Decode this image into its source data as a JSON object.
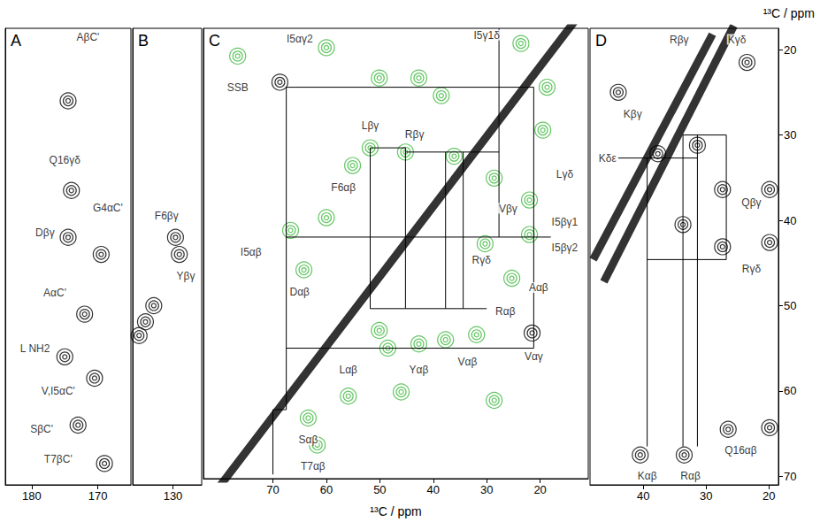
{
  "chart_data": [
    {
      "type": "scatter",
      "title": "A",
      "grid": false,
      "tick_labels": "x",
      "xlim": [
        184,
        165
      ],
      "ylim": [
        71,
        17.5
      ],
      "xticks": [
        180,
        170
      ],
      "series": [
        {
          "color": "#000000",
          "values": [
            [
              174.5,
              26
            ],
            [
              174,
              36.5
            ],
            [
              174.5,
              42
            ],
            [
              169.5,
              44
            ],
            [
              172,
              51
            ],
            [
              175,
              56
            ],
            [
              170.5,
              58.5
            ],
            [
              173,
              64
            ],
            [
              169,
              68.5
            ]
          ]
        }
      ],
      "annotations": [
        {
          "text": "AβC'",
          "x": 171.5,
          "y": 18.5
        },
        {
          "text": "Q16γδ",
          "x": 175,
          "y": 33
        },
        {
          "text": "Dβγ",
          "x": 178,
          "y": 41.5
        },
        {
          "text": "G4αC'",
          "x": 168.5,
          "y": 38.5
        },
        {
          "text": "AαC'",
          "x": 176.5,
          "y": 48.5
        },
        {
          "text": "L NH2",
          "x": 179.5,
          "y": 55
        },
        {
          "text": "V,I5αC'",
          "x": 176,
          "y": 60
        },
        {
          "text": "SβC'",
          "x": 178.5,
          "y": 64.5
        },
        {
          "text": "T7βC'",
          "x": 176,
          "y": 68
        }
      ]
    },
    {
      "type": "scatter",
      "title": "B",
      "grid": false,
      "tick_labels": "x",
      "xlim": [
        136.3,
        125.5
      ],
      "ylim": [
        71,
        17.5
      ],
      "xticks": [
        130
      ],
      "series": [
        {
          "color": "#000000",
          "values": [
            [
              129.6,
              42
            ],
            [
              129,
              44
            ],
            [
              133,
              50
            ],
            [
              134.3,
              51.9
            ],
            [
              135.3,
              53.5
            ]
          ]
        }
      ],
      "annotations": [
        {
          "text": "F6βγ",
          "x": 131,
          "y": 39.5
        },
        {
          "text": "Yβγ",
          "x": 128,
          "y": 46.5
        }
      ]
    },
    {
      "type": "scatter",
      "title": "C",
      "grid": false,
      "tick_labels": "x",
      "xlabel": "¹³C / ppm",
      "xlim": [
        83,
        11
      ],
      "ylim": [
        71,
        17.5
      ],
      "xticks": [
        70,
        60,
        50,
        40,
        30,
        20
      ],
      "series": [
        {
          "type": "line",
          "color": "#000000",
          "values": [
            [
              82,
              73.6
            ],
            [
              13,
              16.2
            ]
          ]
        },
        {
          "color": "#000000",
          "values": [
            [
              68.7,
              23.9
            ],
            [
              21.5,
              53.7
            ]
          ]
        },
        {
          "color": "#3cb83c",
          "values": [
            [
              76.6,
              20.8
            ],
            [
              23.6,
              19.3
            ],
            [
              60,
              19.8
            ],
            [
              50.1,
              23.4
            ],
            [
              42.7,
              23.4
            ],
            [
              38.5,
              25.5
            ],
            [
              51.8,
              31.7
            ],
            [
              45.2,
              32.2
            ],
            [
              36.1,
              32.7
            ],
            [
              28.6,
              35.3
            ],
            [
              22,
              37.9
            ],
            [
              19.5,
              29.6
            ],
            [
              18.7,
              24.5
            ],
            [
              66.7,
              41.5
            ],
            [
              60,
              40
            ],
            [
              55.1,
              33.8
            ],
            [
              64.2,
              46.2
            ],
            [
              30.3,
              43.1
            ],
            [
              22,
              42
            ],
            [
              25.3,
              47.2
            ],
            [
              50.1,
              53.4
            ],
            [
              48.5,
              55.5
            ],
            [
              42.7,
              55
            ],
            [
              37.7,
              54.5
            ],
            [
              31.9,
              53.9
            ],
            [
              55.9,
              61.2
            ],
            [
              46,
              60.7
            ],
            [
              28.6,
              61.7
            ],
            [
              63.4,
              63.8
            ],
            [
              61.7,
              67
            ]
          ]
        }
      ],
      "lines": [
        [
          [
            67.5,
            24.5
          ],
          [
            21.2,
            24.5
          ]
        ],
        [
          [
            67.5,
            24.5
          ],
          [
            67.5,
            62.8
          ]
        ],
        [
          [
            21.2,
            24.5
          ],
          [
            21.2,
            55.5
          ]
        ],
        [
          [
            67.5,
            55.5
          ],
          [
            21.2,
            55.5
          ]
        ],
        [
          [
            67.5,
            42.3
          ],
          [
            18,
            42.3
          ]
        ],
        [
          [
            27.7,
            17.5
          ],
          [
            27.7,
            42.3
          ]
        ],
        [
          [
            51.8,
            31.7
          ],
          [
            51.8,
            50.8
          ]
        ],
        [
          [
            45.2,
            31.7
          ],
          [
            45.2,
            50.8
          ]
        ],
        [
          [
            51.8,
            31.7
          ],
          [
            45.2,
            31.7
          ]
        ],
        [
          [
            51.8,
            50.8
          ],
          [
            45.2,
            50.8
          ]
        ],
        [
          [
            37.7,
            32.2
          ],
          [
            37.7,
            50.8
          ]
        ],
        [
          [
            34.4,
            32.2
          ],
          [
            34.4,
            50.8
          ]
        ],
        [
          [
            45.2,
            32.2
          ],
          [
            27.7,
            32.2
          ]
        ],
        [
          [
            45.2,
            50.8
          ],
          [
            30,
            50.8
          ]
        ],
        [
          [
            70,
            62.8
          ],
          [
            67.5,
            62.8
          ]
        ],
        [
          [
            70,
            62.8
          ],
          [
            70,
            70.5
          ]
        ]
      ],
      "annotations": [
        {
          "text": "I5αγ2",
          "x": 65,
          "y": 18.8
        },
        {
          "text": "SSB",
          "x": 76.6,
          "y": 24.5
        },
        {
          "text": "I5γ1δ",
          "x": 30,
          "y": 18.3
        },
        {
          "text": "Lβγ",
          "x": 51.8,
          "y": 29.1
        },
        {
          "text": "Rβγ",
          "x": 43.5,
          "y": 30.1
        },
        {
          "text": "F6αβ",
          "x": 56.8,
          "y": 36.4
        },
        {
          "text": "Lγδ",
          "x": 15.4,
          "y": 34.8
        },
        {
          "text": "Vβγ",
          "x": 26,
          "y": 38.9
        },
        {
          "text": "I5βγ1",
          "x": 15.4,
          "y": 40.5
        },
        {
          "text": "I5αβ",
          "x": 74.1,
          "y": 44.1
        },
        {
          "text": "I5βγ2",
          "x": 15.4,
          "y": 43.6
        },
        {
          "text": "Rγδ",
          "x": 31,
          "y": 45
        },
        {
          "text": "Dαβ",
          "x": 65,
          "y": 48.8
        },
        {
          "text": "Aαβ",
          "x": 20.3,
          "y": 48.3
        },
        {
          "text": "Rαβ",
          "x": 26.5,
          "y": 51.1
        },
        {
          "text": "Lαβ",
          "x": 55.9,
          "y": 58.1
        },
        {
          "text": "Yαβ",
          "x": 42.7,
          "y": 58.1
        },
        {
          "text": "Vαβ",
          "x": 33.6,
          "y": 57.1
        },
        {
          "text": "Vαγ",
          "x": 21.2,
          "y": 56.5
        },
        {
          "text": "Sαβ",
          "x": 63.4,
          "y": 66.4
        },
        {
          "text": "T7αβ",
          "x": 62.5,
          "y": 69.5
        }
      ]
    },
    {
      "type": "scatter",
      "title": "D",
      "grid": false,
      "ylabel": "¹³C / ppm",
      "xlim": [
        48.5,
        18.5
      ],
      "ylim": [
        71,
        17.5
      ],
      "xticks": [
        40,
        30,
        20
      ],
      "yticks": [
        20,
        30,
        40,
        50,
        60,
        70
      ],
      "series": [
        {
          "type": "line",
          "color": "#000000",
          "values": [
            [
              48,
              44.6
            ],
            [
              29,
              18.2
            ]
          ]
        },
        {
          "type": "line",
          "color": "#000000",
          "values": [
            [
              46.3,
              47.2
            ],
            [
              25.6,
              17.2
            ]
          ]
        },
        {
          "color": "#000000",
          "values": [
            [
              23.5,
              21.5
            ],
            [
              44,
              25
            ],
            [
              31.4,
              31.2
            ],
            [
              37.7,
              32.2
            ],
            [
              27.4,
              36.4
            ],
            [
              19.9,
              36.4
            ],
            [
              33.7,
              40.5
            ],
            [
              27.4,
              43.1
            ],
            [
              19.9,
              42.6
            ],
            [
              19.9,
              64.3
            ],
            [
              40.5,
              67.5
            ],
            [
              33.5,
              67.5
            ],
            [
              26.5,
              64.5
            ]
          ]
        }
      ],
      "lines": [
        [
          [
            44,
            32.7
          ],
          [
            31.4,
            32.7
          ]
        ],
        [
          [
            39.4,
            32.7
          ],
          [
            39.4,
            66.5
          ]
        ],
        [
          [
            33.7,
            30
          ],
          [
            33.7,
            66.5
          ]
        ],
        [
          [
            31.4,
            30
          ],
          [
            31.4,
            66.5
          ]
        ],
        [
          [
            26.8,
            30
          ],
          [
            26.8,
            44.6
          ]
        ],
        [
          [
            33.7,
            30
          ],
          [
            26.8,
            30
          ]
        ],
        [
          [
            39.4,
            44.6
          ],
          [
            26.8,
            44.6
          ]
        ]
      ],
      "annotations": [
        {
          "text": "Rβγ",
          "x": 34.3,
          "y": 18.8
        },
        {
          "text": "Kγδ",
          "x": 25.1,
          "y": 18.8
        },
        {
          "text": "Kβγ",
          "x": 41.7,
          "y": 27.6
        },
        {
          "text": "Kδε",
          "x": 45.7,
          "y": 32.7
        },
        {
          "text": "Qβγ",
          "x": 22.8,
          "y": 37.9
        },
        {
          "text": "Rγδ",
          "x": 22.8,
          "y": 45.7
        },
        {
          "text": "Kαβ",
          "x": 39.4,
          "y": 70
        },
        {
          "text": "Rαβ",
          "x": 32.5,
          "y": 70
        },
        {
          "text": "Q16αβ",
          "x": 24.5,
          "y": 67
        }
      ]
    }
  ]
}
